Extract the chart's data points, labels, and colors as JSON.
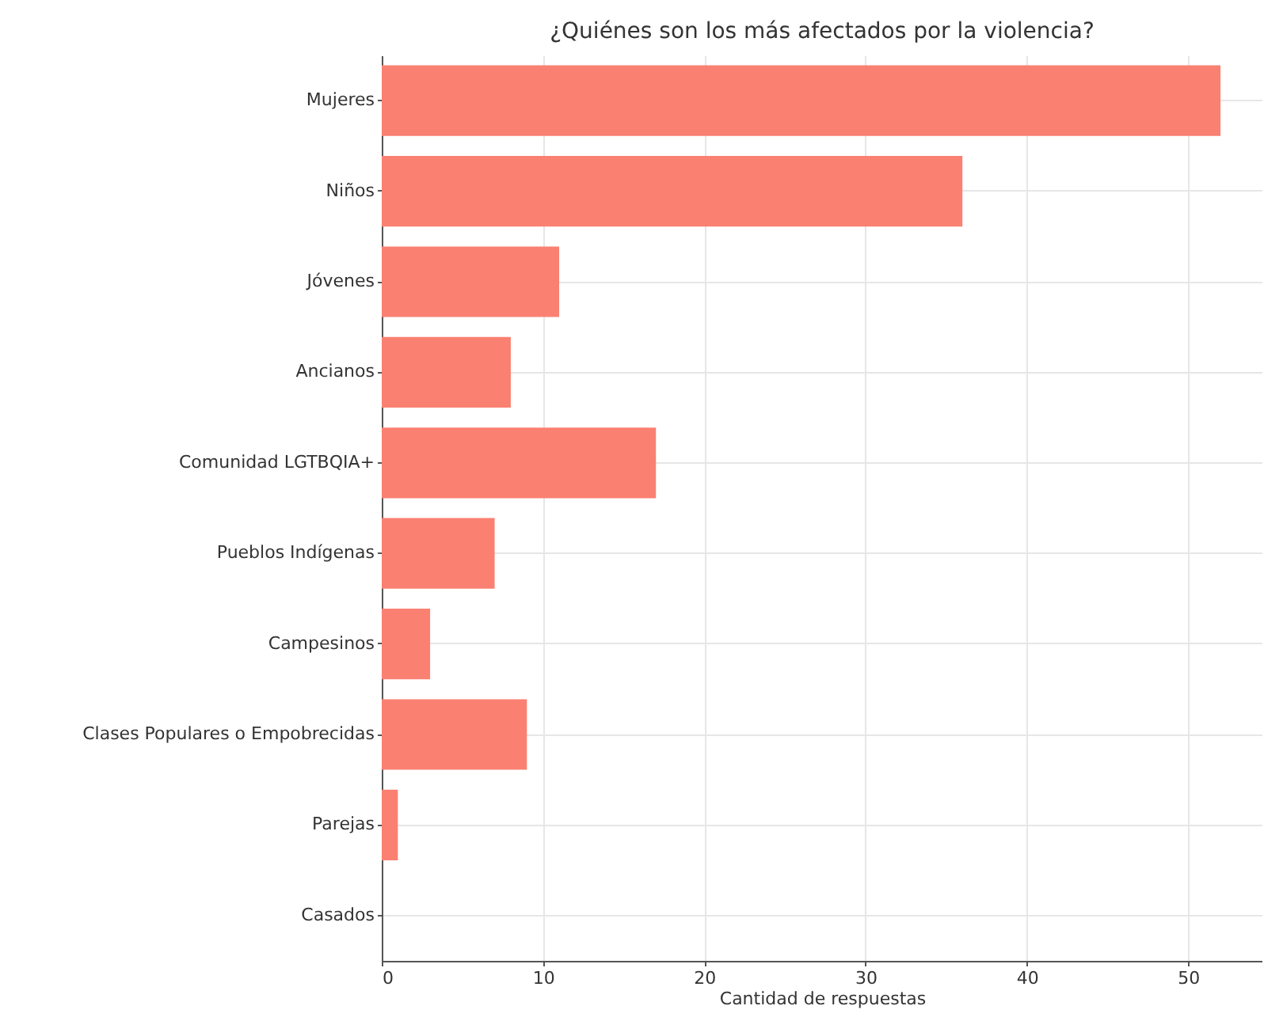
{
  "chart_data": {
    "type": "bar",
    "orientation": "horizontal",
    "title": "¿Quiénes son los más afectados por la violencia?",
    "xlabel": "Cantidad de respuestas",
    "categories": [
      "Mujeres",
      "Niños",
      "Jóvenes",
      "Ancianos",
      "Comunidad LGTBQIA+",
      "Pueblos Indígenas",
      "Campesinos",
      "Clases Populares o Empobrecidas",
      "Parejas",
      "Casados"
    ],
    "values": [
      52,
      36,
      11,
      8,
      17,
      7,
      3,
      9,
      1,
      0
    ],
    "color": "#fa8072",
    "xlim": [
      0,
      54.6
    ],
    "xticks": [
      0,
      10,
      20,
      30,
      40,
      50
    ],
    "grid": true
  }
}
